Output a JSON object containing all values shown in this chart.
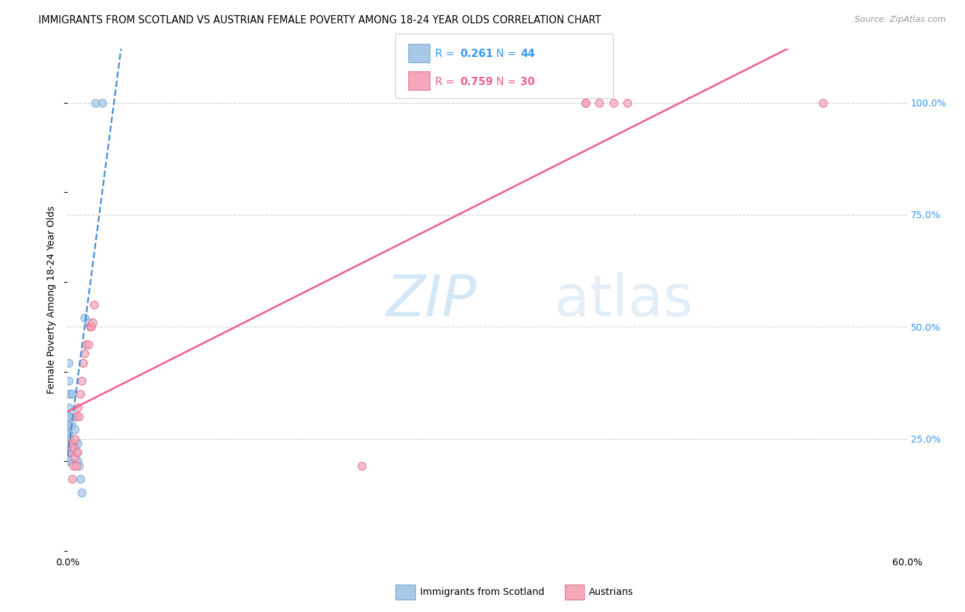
{
  "title": "IMMIGRANTS FROM SCOTLAND VS AUSTRIAN FEMALE POVERTY AMONG 18-24 YEAR OLDS CORRELATION CHART",
  "source": "Source: ZipAtlas.com",
  "ylabel": "Female Poverty Among 18-24 Year Olds",
  "ytick_labels": [
    "100.0%",
    "75.0%",
    "50.0%",
    "25.0%"
  ],
  "ytick_values": [
    1.0,
    0.75,
    0.5,
    0.25
  ],
  "scatter_scotland_x": [
    0.0,
    0.0,
    0.0,
    0.0,
    0.0,
    0.0,
    0.0,
    0.0,
    0.0,
    0.0,
    0.001,
    0.001,
    0.001,
    0.001,
    0.001,
    0.001,
    0.001,
    0.001,
    0.001,
    0.001,
    0.001,
    0.001,
    0.001,
    0.002,
    0.002,
    0.002,
    0.002,
    0.003,
    0.003,
    0.003,
    0.004,
    0.004,
    0.005,
    0.005,
    0.006,
    0.007,
    0.007,
    0.008,
    0.009,
    0.01,
    0.012,
    0.015,
    0.02,
    0.025
  ],
  "scatter_scotland_y": [
    0.2,
    0.21,
    0.22,
    0.23,
    0.24,
    0.24,
    0.25,
    0.26,
    0.27,
    0.28,
    0.2,
    0.21,
    0.22,
    0.23,
    0.24,
    0.25,
    0.26,
    0.28,
    0.3,
    0.32,
    0.35,
    0.38,
    0.42,
    0.22,
    0.25,
    0.3,
    0.35,
    0.22,
    0.28,
    0.35,
    0.24,
    0.3,
    0.23,
    0.27,
    0.22,
    0.24,
    0.2,
    0.19,
    0.16,
    0.13,
    0.52,
    0.51,
    1.0,
    1.0
  ],
  "scatter_austrian_x": [
    0.002,
    0.002,
    0.003,
    0.003,
    0.004,
    0.004,
    0.005,
    0.005,
    0.006,
    0.006,
    0.007,
    0.007,
    0.008,
    0.009,
    0.01,
    0.011,
    0.012,
    0.013,
    0.015,
    0.016,
    0.017,
    0.018,
    0.019,
    0.21,
    0.37,
    0.37,
    0.38,
    0.39,
    0.4,
    0.54
  ],
  "scatter_austrian_y": [
    0.24,
    0.22,
    0.24,
    0.16,
    0.23,
    0.19,
    0.25,
    0.21,
    0.3,
    0.19,
    0.32,
    0.22,
    0.3,
    0.35,
    0.38,
    0.42,
    0.44,
    0.46,
    0.46,
    0.5,
    0.5,
    0.51,
    0.55,
    0.19,
    1.0,
    1.0,
    1.0,
    1.0,
    1.0,
    1.0
  ],
  "scotland_color": "#a8c8e8",
  "scotland_edge_color": "#7aaad0",
  "austrian_color": "#f5a8bb",
  "austrian_edge_color": "#e07090",
  "scotland_line_color": "#4a90d9",
  "austrian_line_color": "#f06090",
  "marker_size": 70,
  "background_color": "#ffffff",
  "grid_color": "#cccccc",
  "xlim": [
    0.0,
    0.6
  ],
  "ylim": [
    0.0,
    1.12
  ],
  "watermark_text": "ZIPatlas",
  "watermark_color": "#c8dff0",
  "watermark_fontsize": 60
}
